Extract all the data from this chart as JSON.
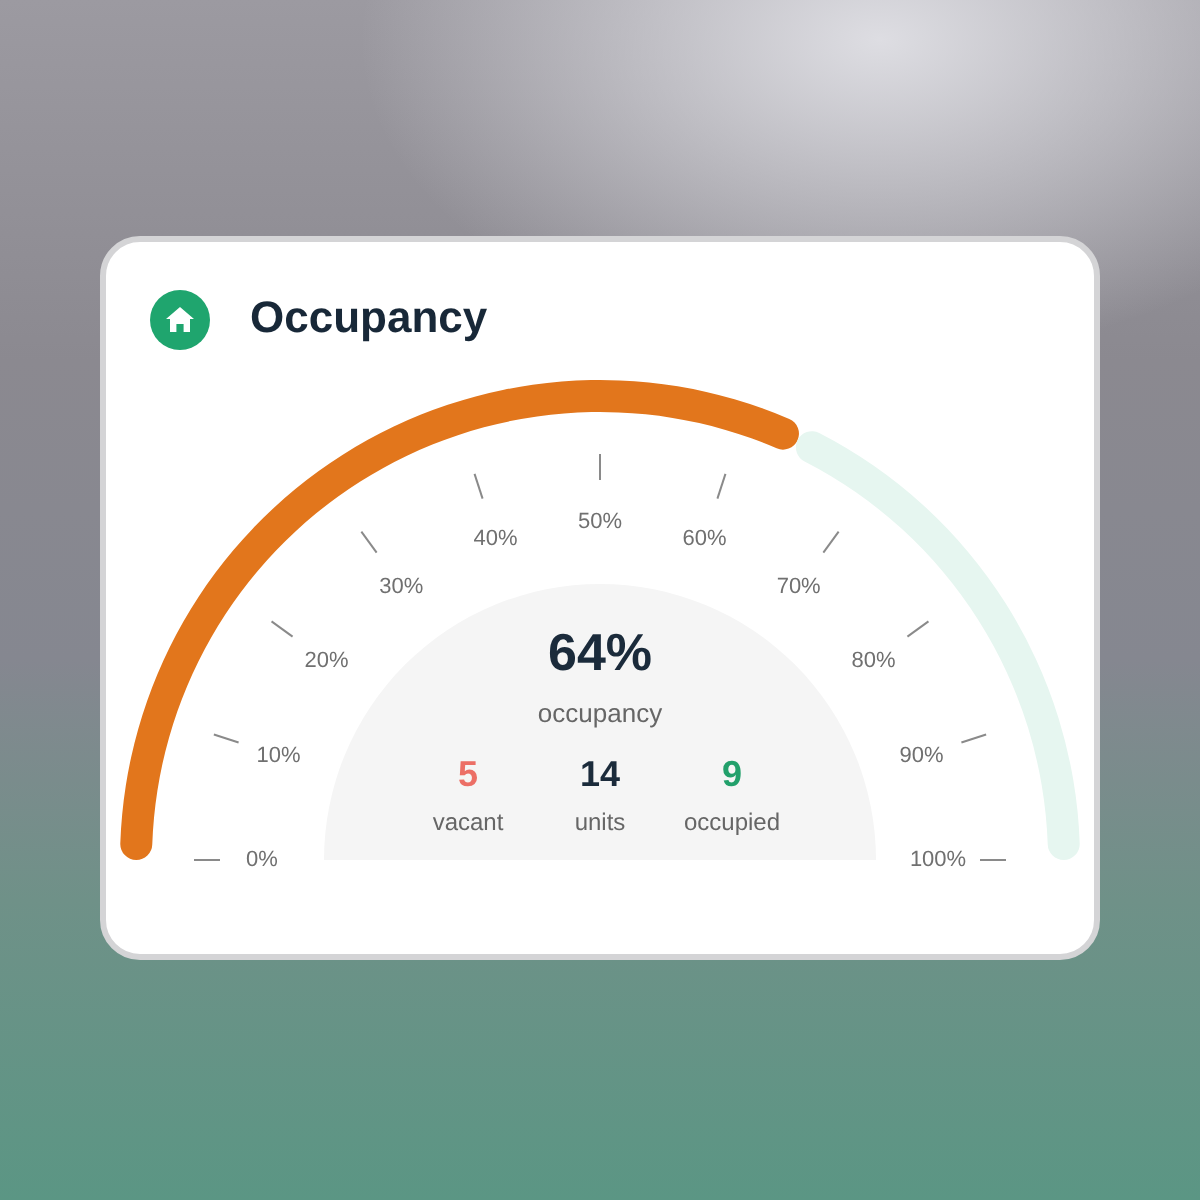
{
  "chart_data": {
    "type": "donut",
    "title": "Occupancy",
    "categories": [
      null,
      null
    ],
    "values": [
      64,
      36
    ],
    "colors": [
      "#e2761c",
      "#e6f6f0"
    ],
    "annotations": [
      "64%",
      "occupancy",
      "5",
      "vacant",
      "14",
      "units",
      "9",
      "occupied",
      "0%",
      "10%",
      "20%",
      "30%",
      "40%",
      "50%",
      "60%",
      "70%",
      "80%",
      "90%",
      "100%"
    ]
  }
}
